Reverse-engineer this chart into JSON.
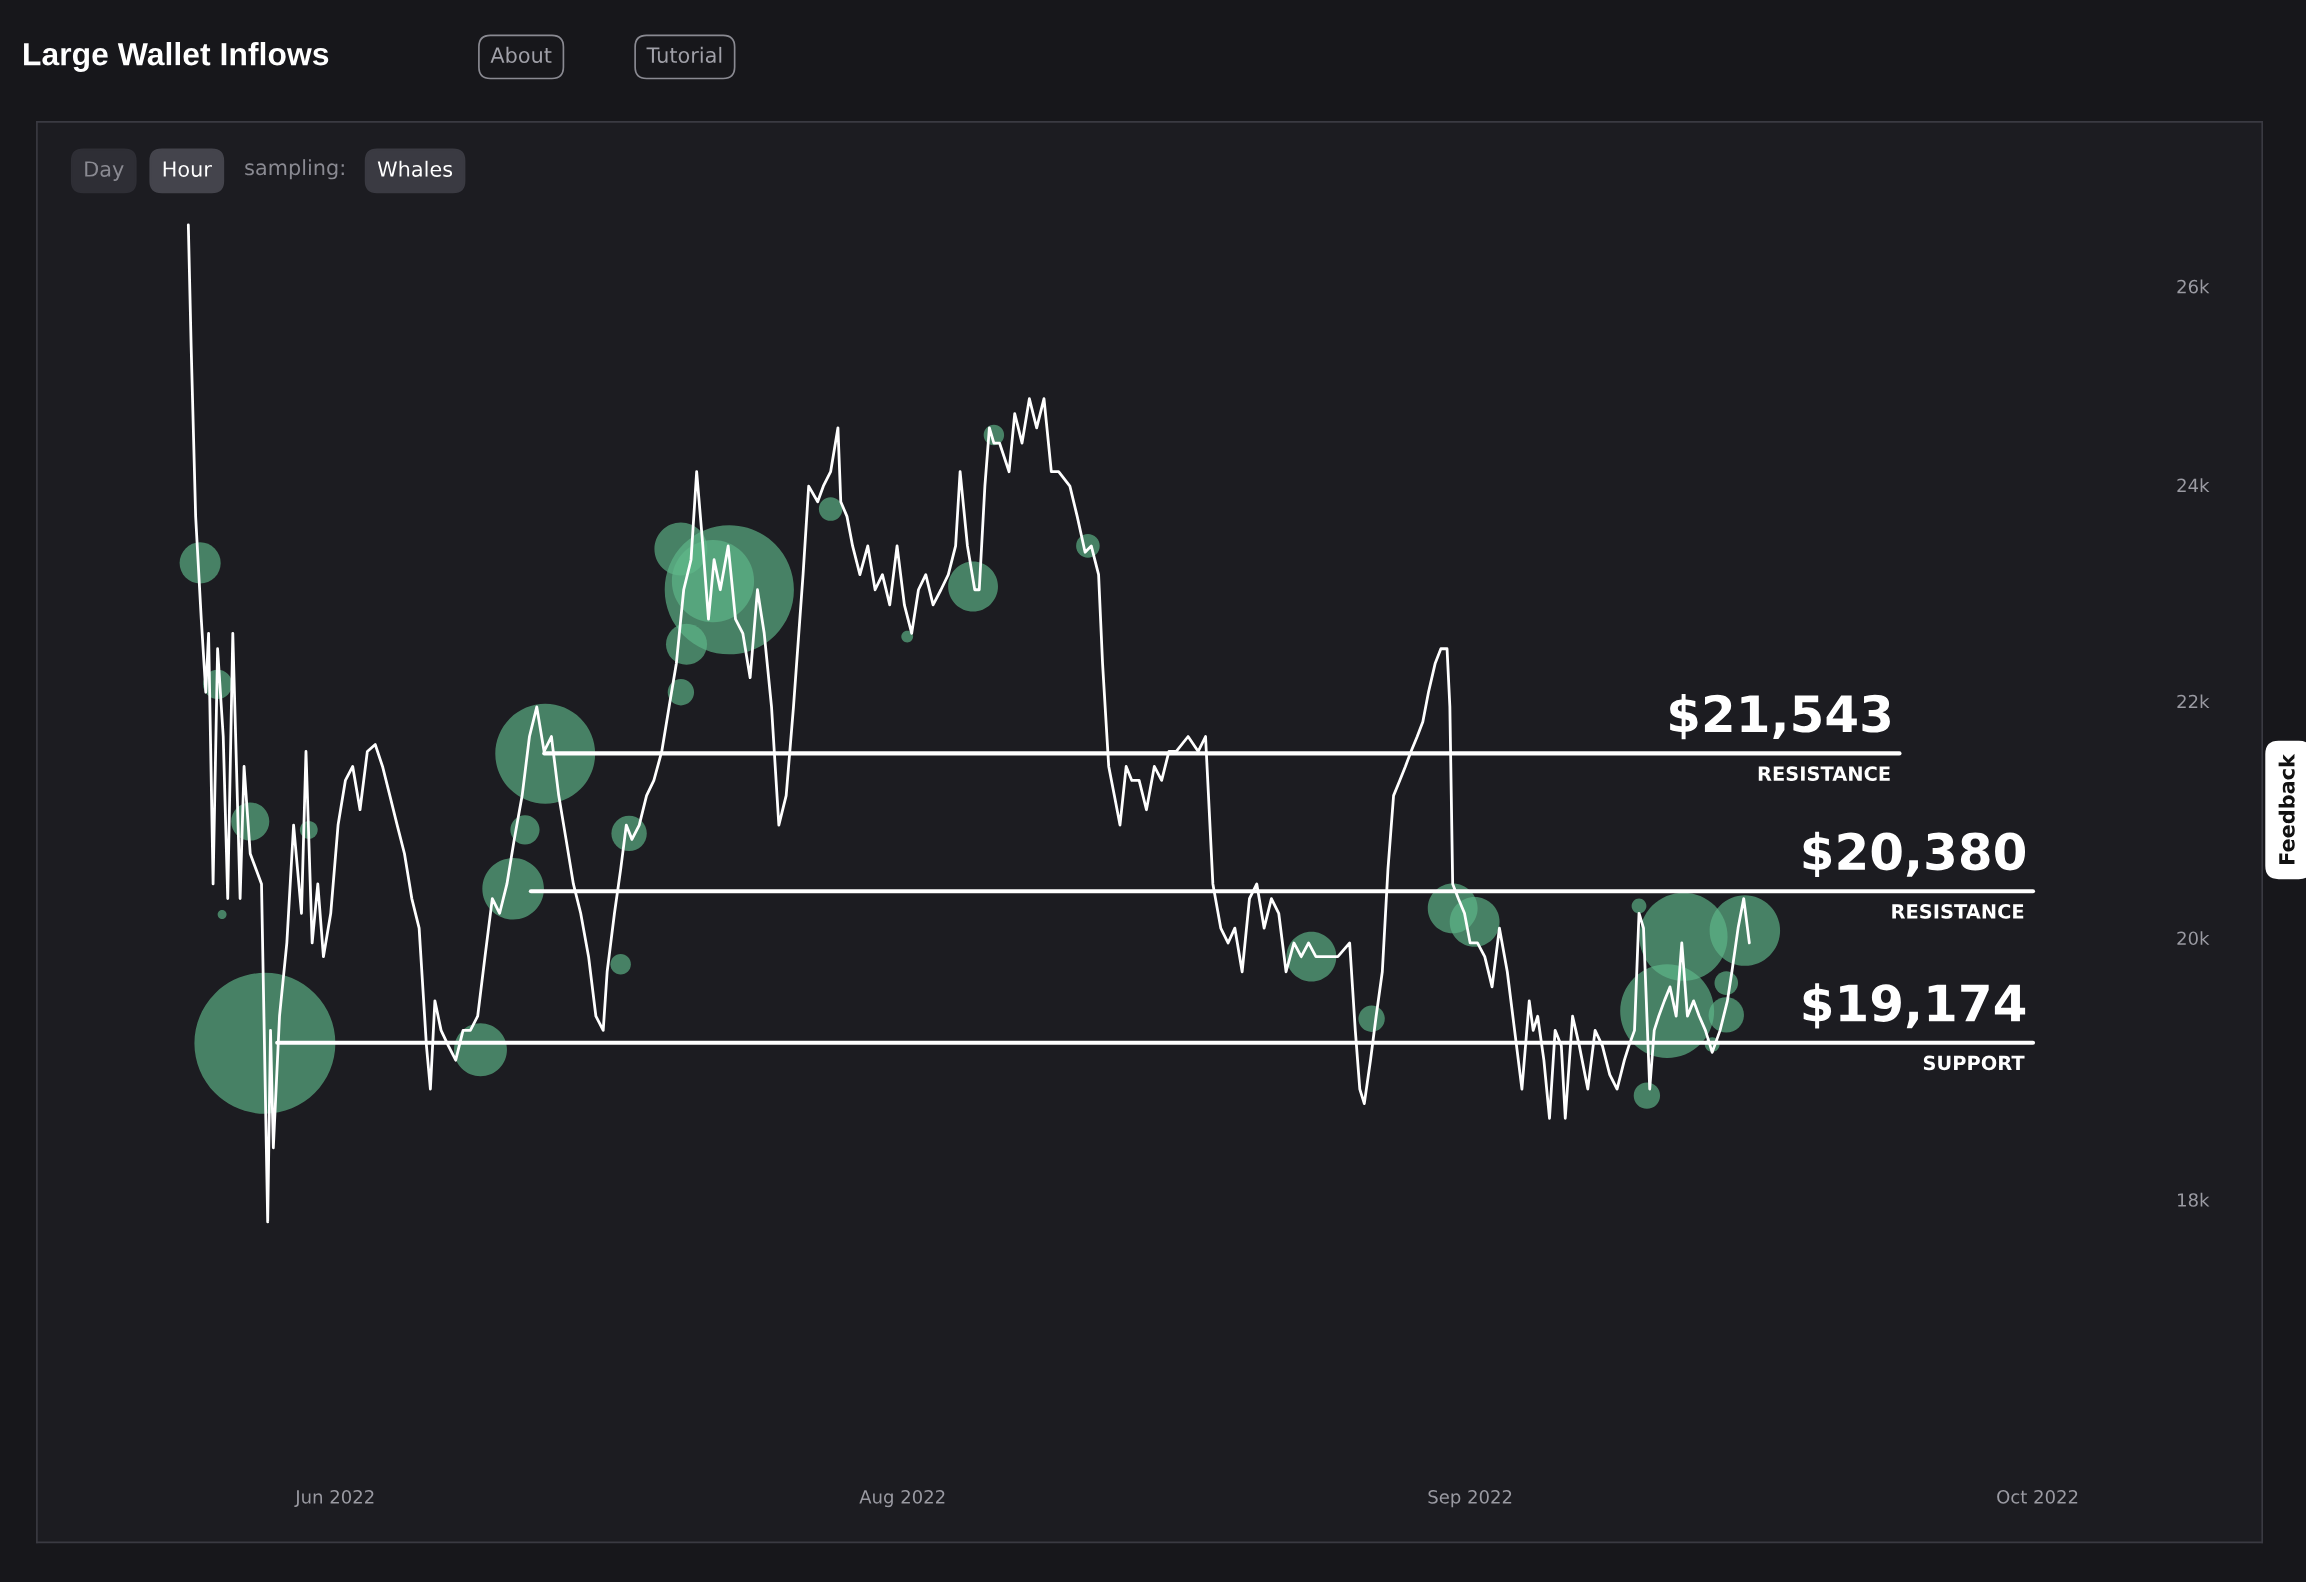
{
  "chart_data": {
    "type": "line",
    "title": "Large Wallet Inflows",
    "annotations": [
      "About",
      "Tutorial",
      "Day",
      "Hour",
      "sampling:",
      "Whales",
      "Feedback"
    ],
    "log": "y",
    "xlim": [
      "2022-06-01T22:00",
      "2022-11-13T15:00"
    ],
    "xticks": [
      {
        "value": "2022-06-24",
        "label": "Jun 2022"
      },
      {
        "value": "2022-08-05",
        "label": "Aug 2022"
      },
      {
        "value": "2022-09-16",
        "label": "Sep 2022"
      },
      {
        "value": "2022-10-28",
        "label": "Oct 2022"
      }
    ],
    "ylim": [
      15680,
      27780
    ],
    "yticks": [
      {
        "value": 18000,
        "label": "18k"
      },
      {
        "value": 20000,
        "label": "20k"
      },
      {
        "value": 22000,
        "label": "22k"
      },
      {
        "value": 24000,
        "label": "24k"
      },
      {
        "value": 26000,
        "label": "26k"
      }
    ],
    "ref_lines": [
      {
        "axis": "y",
        "value": 21543,
        "label": "$21,543\nRESISTANCE",
        "color": "#ffffff"
      },
      {
        "axis": "y",
        "value": 20380,
        "label": "$20,380\nRESISTANCE",
        "color": "#ffffff"
      },
      {
        "axis": "y",
        "value": 19174,
        "label": "$19,174\nSUPPORT",
        "color": "#ffffff"
      }
    ],
    "series": [
      {
        "color": "#ffffff",
        "x": [
          "2022-06-13T03:00",
          "2022-06-13T08:00",
          "2022-06-13T16:00",
          "2022-06-14T02:00",
          "2022-06-14T10:00",
          "2022-06-14T15:00",
          "2022-06-14T23:00",
          "2022-06-15T07:00",
          "2022-06-15T17:00",
          "2022-06-16T01:00",
          "2022-06-16T10:00",
          "2022-06-16T23:00",
          "2022-06-17T06:00",
          "2022-06-17T17:00",
          "2022-06-18T13:00",
          "2022-06-19T00:00",
          "2022-06-19T05:00",
          "2022-06-19T10:00",
          "2022-06-19T21:00",
          "2022-06-20T10:00",
          "2022-06-20T22:00",
          "2022-06-21T12:00",
          "2022-06-21T20:00",
          "2022-06-22T07:00",
          "2022-06-22T17:00",
          "2022-06-23T03:00",
          "2022-06-23T16:00",
          "2022-06-24T05:00",
          "2022-06-24T18:00",
          "2022-06-25T07:00",
          "2022-06-25T20:00",
          "2022-06-26T09:00",
          "2022-06-26T23:00",
          "2022-06-27T12:00",
          "2022-06-28T01:00",
          "2022-06-28T14:00",
          "2022-06-29T03:00",
          "2022-06-29T16:00",
          "2022-06-30T05:00",
          "2022-06-30T18:00",
          "2022-07-01T01:00",
          "2022-07-01T09:00",
          "2022-07-01T20:00",
          "2022-07-02T09:00",
          "2022-07-02T22:00",
          "2022-07-03T11:00",
          "2022-07-04T00:00",
          "2022-07-04T13:00",
          "2022-07-05T02:00",
          "2022-07-05T15:00",
          "2022-07-06T04:00",
          "2022-07-06T17:00",
          "2022-07-07T06:00",
          "2022-07-07T20:00",
          "2022-07-08T09:00",
          "2022-07-08T22:00",
          "2022-07-09T11:00",
          "2022-07-10T00:00",
          "2022-07-10T13:00",
          "2022-07-11T02:00",
          "2022-07-11T15:00",
          "2022-07-12T04:00",
          "2022-07-12T18:00",
          "2022-07-13T07:00",
          "2022-07-13T20:00",
          "2022-07-14T03:00",
          "2022-07-14T16:00",
          "2022-07-15T03:00",
          "2022-07-15T13:00",
          "2022-07-15T23:00",
          "2022-07-16T12:00",
          "2022-07-17T01:00",
          "2022-07-17T14:00",
          "2022-07-18T04:00",
          "2022-07-18T17:00",
          "2022-07-19T06:00",
          "2022-07-19T19:00",
          "2022-07-20T08:00",
          "2022-07-20T18:00",
          "2022-07-21T05:00",
          "2022-07-21T15:00",
          "2022-07-22T01:00",
          "2022-07-22T12:00",
          "2022-07-23T02:00",
          "2022-07-23T15:00",
          "2022-07-24T04:00",
          "2022-07-24T17:00",
          "2022-07-25T06:00",
          "2022-07-25T18:00",
          "2022-07-26T07:00",
          "2022-07-26T20:00",
          "2022-07-27T09:00",
          "2022-07-27T22:00",
          "2022-07-28T15:00",
          "2022-07-29T01:00",
          "2022-07-29T17:00",
          "2022-07-30T03:00",
          "2022-07-30T16:00",
          "2022-07-31T05:00",
          "2022-07-31T10:00",
          "2022-07-31T21:00",
          "2022-08-01T07:00",
          "2022-08-01T20:00",
          "2022-08-02T10:00",
          "2022-08-02T23:00",
          "2022-08-03T12:00",
          "2022-08-04T01:00",
          "2022-08-04T14:00",
          "2022-08-05T03:00",
          "2022-08-05T16:00",
          "2022-08-06T04:00",
          "2022-08-06T17:00",
          "2022-08-07T06:00",
          "2022-08-07T20:00",
          "2022-08-08T09:00",
          "2022-08-08T22:00",
          "2022-08-09T06:00",
          "2022-08-09T19:00",
          "2022-08-10T08:00",
          "2022-08-10T16:00",
          "2022-08-11T02:00",
          "2022-08-11T10:00",
          "2022-08-11T18:00",
          "2022-08-12T04:00",
          "2022-08-12T21:00",
          "2022-08-13T07:00",
          "2022-08-13T20:00",
          "2022-08-14T09:00",
          "2022-08-14T22:00",
          "2022-08-15T11:00",
          "2022-08-16T00:00",
          "2022-08-16T13:00",
          "2022-08-17T09:00",
          "2022-08-17T22:00",
          "2022-08-18T12:00",
          "2022-08-18T23:00",
          "2022-08-19T12:00",
          "2022-08-19T19:00",
          "2022-08-20T06:00",
          "2022-08-20T16:00",
          "2022-08-21T02:00",
          "2022-08-21T13:00",
          "2022-08-21T23:00",
          "2022-08-22T12:00",
          "2022-08-23T01:00",
          "2022-08-23T15:00",
          "2022-08-24T04:00",
          "2022-08-24T17:00",
          "2022-08-25T06:00",
          "2022-08-26T03:00",
          "2022-08-26T21:00",
          "2022-08-27T10:00",
          "2022-08-27T23:00",
          "2022-08-28T13:00",
          "2022-08-29T02:00",
          "2022-08-29T14:00",
          "2022-08-30T03:00",
          "2022-08-30T16:00",
          "2022-08-31T05:00",
          "2022-08-31T18:00",
          "2022-09-01T07:00",
          "2022-09-01T20:00",
          "2022-09-02T09:00",
          "2022-09-02T23:00",
          "2022-09-03T12:00",
          "2022-09-04T01:00",
          "2022-09-04T14:00",
          "2022-09-06T05:00",
          "2022-09-07T02:00",
          "2022-09-07T12:00",
          "2022-09-07T20:00",
          "2022-09-08T04:00",
          "2022-09-08T15:00",
          "2022-09-09T01:00",
          "2022-09-09T12:00",
          "2022-09-09T22:00",
          "2022-09-10T08:00",
          "2022-09-10T19:00",
          "2022-09-11T05:00",
          "2022-09-11T15:00",
          "2022-09-12T02:00",
          "2022-09-12T12:00",
          "2022-09-12T22:00",
          "2022-09-13T10:00",
          "2022-09-13T20:00",
          "2022-09-14T07:00",
          "2022-09-14T12:00",
          "2022-09-14T17:00",
          "2022-09-15T03:00",
          "2022-09-15T14:00",
          "2022-09-16T00:00",
          "2022-09-16T13:00",
          "2022-09-17T02:00",
          "2022-09-17T15:00",
          "2022-09-18T04:00",
          "2022-09-18T18:00",
          "2022-09-19T07:00",
          "2022-09-19T20:00",
          "2022-09-20T09:00",
          "2022-09-20T16:00",
          "2022-09-21T00:00",
          "2022-09-21T11:00",
          "2022-09-21T21:00",
          "2022-09-22T07:00",
          "2022-09-22T18:00",
          "2022-09-23T01:00",
          "2022-09-23T14:00",
          "2022-09-24T02:00",
          "2022-09-24T17:00",
          "2022-09-25T06:00",
          "2022-09-25T19:00",
          "2022-09-26T08:00",
          "2022-09-26T21:00",
          "2022-09-27T10:00",
          "2022-09-27T18:00",
          "2022-09-28T04:00",
          "2022-09-28T12:00",
          "2022-09-28T20:00",
          "2022-09-29T07:00",
          "2022-09-29T15:00",
          "2022-09-29T23:00",
          "2022-09-30T09:00",
          "2022-09-30T19:00",
          "2022-10-01T06:00",
          "2022-10-01T16:00",
          "2022-10-02T02:00",
          "2022-10-02T13:00",
          "2022-10-02T23:00",
          "2022-10-03T10:00",
          "2022-10-03T22:00",
          "2022-10-04T12:00",
          "2022-10-05T01:00",
          "2022-10-05T09:00",
          "2022-10-05T20:00",
          "2022-10-06T06:00",
          "2022-10-06T16:00"
        ],
        "values": [
          26650,
          25380,
          23700,
          22740,
          22080,
          22610,
          20440,
          22470,
          21690,
          20320,
          22610,
          20320,
          21430,
          20690,
          20440,
          17840,
          19270,
          18380,
          19380,
          19960,
          20930,
          20200,
          21560,
          19960,
          20440,
          19850,
          20200,
          20930,
          21310,
          21430,
          21060,
          21560,
          21620,
          21430,
          21180,
          20930,
          20690,
          20320,
          20080,
          19150,
          18820,
          19500,
          19270,
          19150,
          19040,
          19270,
          19270,
          19380,
          19850,
          20320,
          20200,
          20440,
          20810,
          21180,
          21690,
          21950,
          21560,
          21690,
          21180,
          20810,
          20440,
          20200,
          19850,
          19380,
          19270,
          19730,
          20200,
          20560,
          20930,
          20810,
          20930,
          21180,
          21310,
          21560,
          21950,
          22340,
          23010,
          23290,
          24130,
          23420,
          22740,
          23290,
          23010,
          23420,
          22740,
          22610,
          22210,
          23010,
          22610,
          21950,
          20930,
          21180,
          21950,
          23150,
          23990,
          23840,
          23990,
          24130,
          24560,
          23840,
          23700,
          23420,
          23150,
          23420,
          23010,
          23150,
          22870,
          23420,
          22870,
          22610,
          23010,
          23150,
          22870,
          23010,
          23150,
          23420,
          24130,
          23420,
          23010,
          23010,
          23990,
          24560,
          24410,
          24410,
          24130,
          24700,
          24410,
          24850,
          24560,
          24850,
          24130,
          24130,
          23990,
          23700,
          23360,
          23420,
          23150,
          22340,
          21430,
          21180,
          20930,
          21430,
          21310,
          21310,
          21060,
          21430,
          21310,
          21560,
          21560,
          21690,
          21560,
          21690,
          20440,
          20080,
          19960,
          20080,
          19730,
          20320,
          20440,
          20080,
          20320,
          20200,
          19730,
          19960,
          19850,
          19960,
          19850,
          19850,
          19960,
          19270,
          18820,
          18710,
          19040,
          19380,
          19730,
          20560,
          21180,
          21310,
          21430,
          21560,
          21690,
          21820,
          22080,
          22340,
          22470,
          22470,
          21950,
          20440,
          20320,
          20200,
          19960,
          19960,
          19850,
          19610,
          20080,
          19730,
          19270,
          18820,
          19500,
          19270,
          19380,
          19040,
          18600,
          19270,
          19150,
          18600,
          19380,
          19150,
          18820,
          19270,
          19150,
          18930,
          18820,
          19040,
          19150,
          19270,
          20200,
          20080,
          18820,
          19270,
          19380,
          19500,
          19610,
          19380,
          19960,
          19380,
          19500,
          19380,
          19270,
          19100,
          19270,
          19500,
          19730,
          20080,
          20320,
          19960
        ]
      },
      {
        "type": "bubble",
        "color": "#5fb98a",
        "x": [
          "2022-06-14T00:00",
          "2022-06-15T07:00",
          "2022-06-17T17:00",
          "2022-06-15T15:00",
          "2022-06-18T19:00",
          "2022-06-22T01:00",
          "2022-07-04T18:00",
          "2022-07-07T04:00",
          "2022-07-08T01:00",
          "2022-07-09T13:00",
          "2022-07-15T03:00",
          "2022-07-15T18:00",
          "2022-07-19T14:00",
          "2022-07-21T23:00",
          "2022-07-23T04:00",
          "2022-07-20T00:00",
          "2022-07-19T14:00",
          "2022-07-30T16:00",
          "2022-08-05T08:00",
          "2022-08-10T05:00",
          "2022-08-11T18:00",
          "2022-08-18T17:00",
          "2022-09-04T06:00",
          "2022-09-08T17:00",
          "2022-09-14T17:00",
          "2022-09-16T08:00",
          "2022-09-28T12:00",
          "2022-10-01T19:00",
          "2022-10-06T08:00",
          "2022-09-30T14:00",
          "2022-10-04T23:00",
          "2022-10-04T23:00",
          "2022-09-29T02:00",
          "2022-10-03T22:00"
        ],
        "values": [
          23260,
          22150,
          20960,
          20190,
          19170,
          20890,
          19120,
          20400,
          20890,
          21540,
          19790,
          20860,
          23390,
          23090,
          23010,
          22510,
          22080,
          23770,
          22580,
          23040,
          24490,
          23420,
          19850,
          19360,
          20240,
          20130,
          20260,
          20010,
          20060,
          19420,
          19390,
          19640,
          18770,
          19160
        ],
        "sizes": [
          0.085,
          0.043,
          0.073,
          0.004,
          1,
          0.016,
          0.141,
          0.191,
          0.043,
          0.502,
          0.021,
          0.063,
          0.141,
          0.34,
          0.84,
          0.085,
          0.035,
          0.028,
          0.007,
          0.125,
          0.021,
          0.028,
          0.125,
          0.035,
          0.125,
          0.125,
          0.011,
          0.391,
          0.25,
          0.444,
          0.063,
          0.028,
          0.035,
          0.011
        ]
      }
    ]
  }
}
